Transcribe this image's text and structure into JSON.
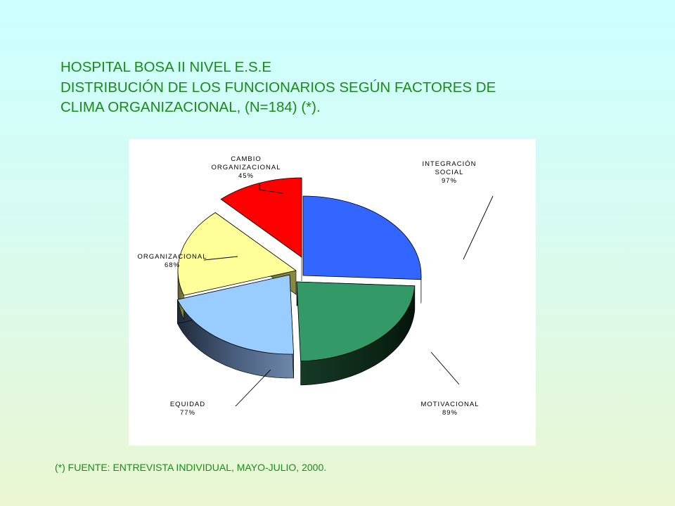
{
  "title": {
    "line1": "HOSPITAL BOSA II NIVEL E.S.E",
    "line2": "DISTRIBUCIÓN DE LOS FUNCIONARIOS SEGÚN FACTORES DE",
    "line3": "CLIMA ORGANIZACIONAL,  (N=184) (*)."
  },
  "footnote": "(*) FUENTE: ENTREVISTA INDIVIDUAL, MAYO-JULIO, 2000.",
  "chart_data": {
    "type": "pie",
    "style": "3d-exploded",
    "slices": [
      {
        "label_lines": [
          "INTEGRACIÓN",
          "SOCIAL"
        ],
        "value": 97,
        "percent_label": "97%",
        "color": "#3366ff"
      },
      {
        "label_lines": [
          "MOTIVACIONAL"
        ],
        "value": 89,
        "percent_label": "89%",
        "color": "#339966"
      },
      {
        "label_lines": [
          "EQUIDAD"
        ],
        "value": 77,
        "percent_label": "77%",
        "color": "#99ccff"
      },
      {
        "label_lines": [
          "ORGANIZACIONAL"
        ],
        "value": 68,
        "percent_label": "68%",
        "color": "#ffff99"
      },
      {
        "label_lines": [
          "CAMBIO",
          "ORGANIZACIONAL"
        ],
        "value": 45,
        "percent_label": "45%",
        "color": "#ff0000"
      }
    ]
  }
}
